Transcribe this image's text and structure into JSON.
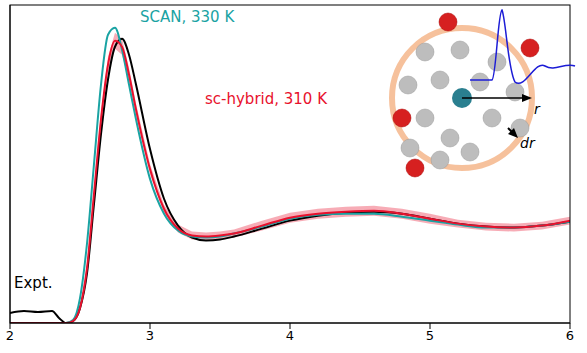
{
  "chart_data": {
    "type": "line",
    "x": [
      2.0,
      2.1,
      2.2,
      2.3,
      2.35,
      2.4,
      2.45,
      2.5,
      2.55,
      2.6,
      2.65,
      2.7,
      2.75,
      2.8,
      2.85,
      2.9,
      3.0,
      3.1,
      3.2,
      3.3,
      3.4,
      3.5,
      3.6,
      3.8,
      4.0,
      4.2,
      4.4,
      4.6,
      4.8,
      5.0,
      5.2,
      5.4,
      5.6,
      5.8,
      6.0
    ],
    "series": [
      {
        "name": "Expt.",
        "color": "#000000",
        "values": [
          0.1,
          0.12,
          0.11,
          0.12,
          0.05,
          0.0,
          0.02,
          0.15,
          0.5,
          1.2,
          1.9,
          2.45,
          2.78,
          2.86,
          2.7,
          2.4,
          1.75,
          1.25,
          0.98,
          0.86,
          0.83,
          0.84,
          0.87,
          0.95,
          1.03,
          1.08,
          1.11,
          1.12,
          1.1,
          1.05,
          1.0,
          0.97,
          0.96,
          0.98,
          1.02
        ]
      },
      {
        "name": "SCAN, 330 K",
        "color": "#1aa3a3",
        "values": [
          0,
          0,
          0,
          0,
          0,
          0,
          0.03,
          0.25,
          0.8,
          1.6,
          2.4,
          2.9,
          2.97,
          2.75,
          2.4,
          2.05,
          1.45,
          1.1,
          0.93,
          0.87,
          0.86,
          0.87,
          0.9,
          0.97,
          1.05,
          1.09,
          1.1,
          1.1,
          1.07,
          1.03,
          0.99,
          0.96,
          0.96,
          0.98,
          1.02
        ]
      },
      {
        "name": "sc-hybrid, 310 K",
        "color": "#e8112d",
        "values": [
          0,
          0,
          0,
          0,
          0,
          0,
          0.02,
          0.15,
          0.55,
          1.3,
          2.05,
          2.6,
          2.84,
          2.78,
          2.5,
          2.15,
          1.55,
          1.15,
          0.95,
          0.88,
          0.87,
          0.88,
          0.9,
          0.98,
          1.06,
          1.1,
          1.12,
          1.13,
          1.1,
          1.05,
          1.0,
          0.97,
          0.96,
          0.98,
          1.03
        ],
        "error": [
          0,
          0,
          0,
          0,
          0,
          0,
          0.01,
          0.03,
          0.05,
          0.06,
          0.07,
          0.08,
          0.08,
          0.08,
          0.07,
          0.06,
          0.05,
          0.04,
          0.04,
          0.04,
          0.04,
          0.04,
          0.04,
          0.05,
          0.05,
          0.05,
          0.05,
          0.05,
          0.05,
          0.05,
          0.04,
          0.04,
          0.04,
          0.04,
          0.04
        ]
      }
    ],
    "xlim": [
      2,
      6
    ],
    "xticks": [
      2,
      3,
      4,
      5,
      6
    ],
    "ylim": [
      0,
      3.2
    ],
    "yticks": [
      0,
      1,
      2,
      3
    ],
    "tick_labels": "x",
    "grid": false,
    "inset": {
      "labels": [
        "r",
        "dr"
      ]
    }
  }
}
